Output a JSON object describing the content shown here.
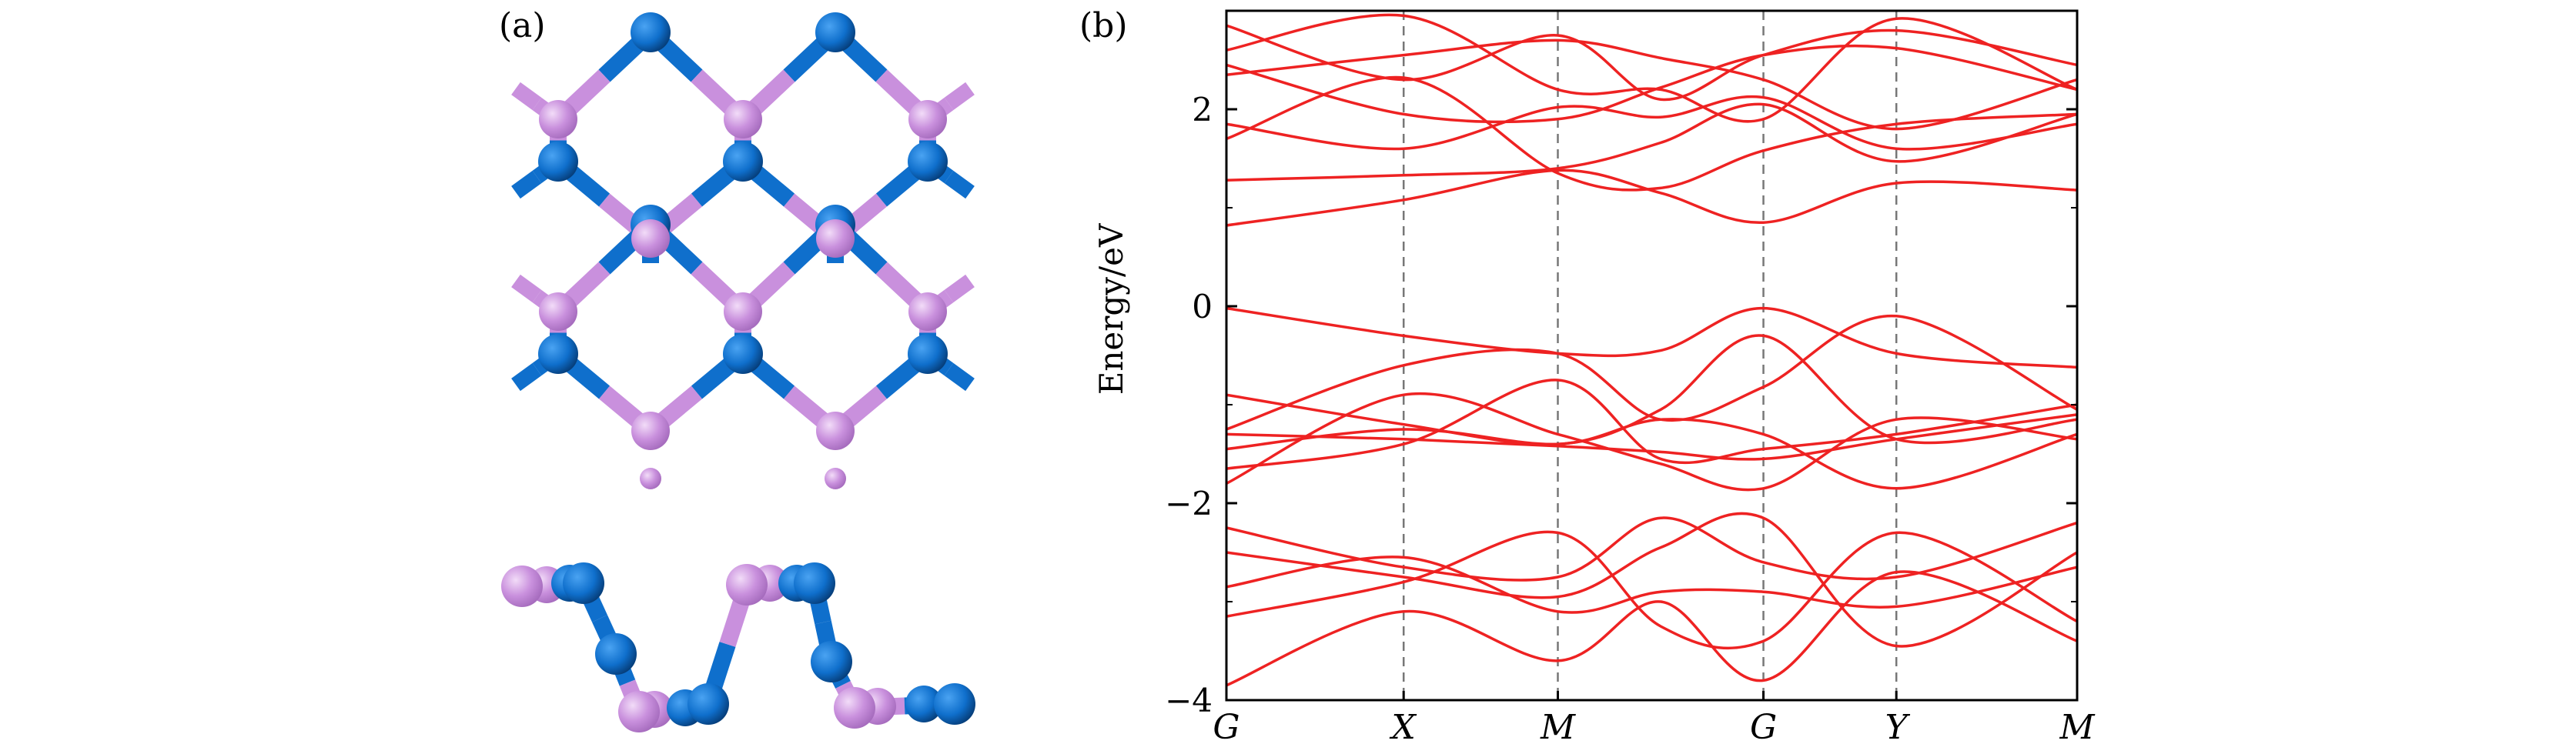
{
  "panels": {
    "a_label": "(a)",
    "b_label": "(b)"
  },
  "colors": {
    "p_atom": "#c990dd",
    "p_atom_dark": "#a56bbd",
    "s_atom": "#0f6fcc",
    "s_atom_dark": "#063e7a",
    "band": "#ee2222"
  },
  "chart_data": {
    "type": "line",
    "ylabel": "Energy/eV",
    "ylim": [
      -4,
      3
    ],
    "yticks": [
      {
        "value": 2,
        "label": "2"
      },
      {
        "value": 0,
        "label": "0"
      },
      {
        "value": -2,
        "label": "−2"
      },
      {
        "value": -4,
        "label": "−4"
      }
    ],
    "kpoints": [
      {
        "label": "G",
        "pos": 0
      },
      {
        "label": "X",
        "pos": 1
      },
      {
        "label": "M",
        "pos": 1.87
      },
      {
        "label": "G",
        "pos": 3.03
      },
      {
        "label": "Y",
        "pos": 3.78
      },
      {
        "label": "M",
        "pos": 4.8
      }
    ],
    "grid": "vertical dashed lines at high-symmetry points",
    "series": [
      {
        "values": [
          0.82,
          1.08,
          1.38,
          1.15,
          0.85,
          1.25,
          1.18
        ]
      },
      {
        "values": [
          1.28,
          1.33,
          1.4,
          1.66,
          2.05,
          1.47,
          1.95
        ]
      },
      {
        "values": [
          1.7,
          2.32,
          1.35,
          1.2,
          1.58,
          1.85,
          1.95
        ]
      },
      {
        "values": [
          1.85,
          1.6,
          2.02,
          1.92,
          2.12,
          1.6,
          1.85
        ]
      },
      {
        "values": [
          2.35,
          2.55,
          2.7,
          2.52,
          2.3,
          1.8,
          2.3
        ]
      },
      {
        "values": [
          2.45,
          1.95,
          1.9,
          2.22,
          2.55,
          2.62,
          2.2
        ]
      },
      {
        "values": [
          2.6,
          2.95,
          2.2,
          2.2,
          1.9,
          2.92,
          2.2
        ]
      },
      {
        "values": [
          2.85,
          2.3,
          2.75,
          2.1,
          2.55,
          2.8,
          2.45
        ]
      },
      {
        "values": [
          -0.02,
          -0.3,
          -0.48,
          -0.45,
          -0.02,
          -0.48,
          -0.62
        ]
      },
      {
        "values": [
          -1.25,
          -0.6,
          -0.48,
          -1.15,
          -0.82,
          -0.1,
          -1.05
        ]
      },
      {
        "values": [
          -0.9,
          -1.2,
          -1.4,
          -1.05,
          -0.3,
          -1.35,
          -1.15
        ]
      },
      {
        "values": [
          -1.3,
          -1.35,
          -1.42,
          -1.48,
          -1.55,
          -1.35,
          -1.1
        ]
      },
      {
        "values": [
          -1.45,
          -1.25,
          -1.4,
          -1.15,
          -1.3,
          -1.85,
          -1.3
        ]
      },
      {
        "values": [
          -1.65,
          -1.4,
          -0.75,
          -1.55,
          -1.45,
          -1.3,
          -1.0
        ]
      },
      {
        "values": [
          -1.8,
          -0.9,
          -1.3,
          -1.6,
          -1.85,
          -1.15,
          -1.35
        ]
      },
      {
        "values": [
          -2.25,
          -2.65,
          -2.75,
          -2.15,
          -2.6,
          -2.75,
          -2.2
        ]
      },
      {
        "values": [
          -2.5,
          -2.75,
          -2.95,
          -2.45,
          -2.15,
          -3.45,
          -2.5
        ]
      },
      {
        "values": [
          -2.85,
          -2.55,
          -3.1,
          -2.9,
          -2.9,
          -3.05,
          -2.65
        ]
      },
      {
        "values": [
          -3.15,
          -2.8,
          -2.3,
          -3.25,
          -3.4,
          -2.3,
          -3.2
        ]
      },
      {
        "values": [
          -3.85,
          -3.1,
          -3.6,
          -3.0,
          -3.8,
          -2.7,
          -3.4
        ]
      }
    ]
  }
}
